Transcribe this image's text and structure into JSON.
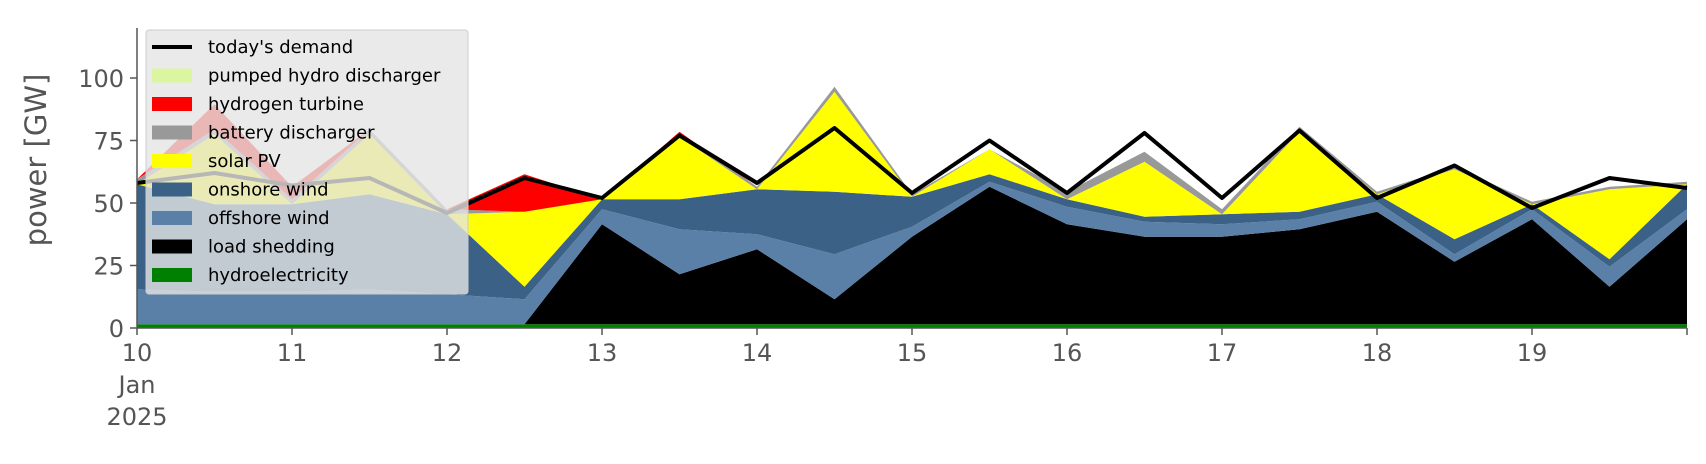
{
  "chart_data": {
    "type": "area",
    "stacked": true,
    "ylabel": "power [GW]",
    "ylim": [
      0,
      120
    ],
    "yticks": [
      "0",
      "25",
      "50",
      "75",
      "100"
    ],
    "xlim": [
      "2025-01-10",
      "2025-01-20"
    ],
    "x_tick_labels": [
      {
        "day": "10",
        "sub1": "Jan",
        "sub2": "2025"
      },
      {
        "day": "11"
      },
      {
        "day": "12"
      },
      {
        "day": "13"
      },
      {
        "day": "14"
      },
      {
        "day": "15"
      },
      {
        "day": "16"
      },
      {
        "day": "17"
      },
      {
        "day": "18"
      },
      {
        "day": "19"
      },
      {
        "day": ""
      }
    ],
    "grid": false,
    "legend_position": "top-left",
    "x_days": [
      10,
      10.5,
      11,
      11.5,
      12,
      12.5,
      13,
      13.5,
      14,
      14.5,
      15,
      15.5,
      16,
      16.5,
      17,
      17.5,
      18,
      18.5,
      19,
      19.5,
      20
    ],
    "series": [
      {
        "name": "hydroelectricity",
        "color": "#008000",
        "values": [
          1.5,
          1.5,
          1.5,
          1.5,
          1.5,
          1.5,
          1.5,
          1.5,
          1.5,
          1.5,
          1.5,
          1.5,
          1.5,
          1.5,
          1.5,
          1.5,
          1.5,
          1.5,
          1.5,
          1.5,
          1.5
        ]
      },
      {
        "name": "load shedding",
        "color": "#000000",
        "values": [
          0,
          0,
          0,
          0,
          0,
          0,
          40,
          20,
          30,
          10,
          35,
          55,
          40,
          35,
          35,
          38,
          45,
          25,
          42,
          15,
          42
        ]
      },
      {
        "name": "offshore wind",
        "color": "#5b80a8",
        "values": [
          14,
          13,
          13,
          14,
          12,
          10,
          6,
          18,
          6,
          18,
          4,
          2,
          7,
          6,
          5,
          4,
          4,
          3,
          4,
          8,
          4
        ]
      },
      {
        "name": "onshore wind",
        "color": "#3b6186",
        "values": [
          42,
          35,
          35,
          38,
          32,
          5,
          4,
          12,
          18,
          25,
          12,
          3,
          3,
          2,
          4,
          3,
          3,
          6,
          2,
          3,
          10
        ]
      },
      {
        "name": "solar PV",
        "color": "#ffff00",
        "values": [
          0,
          28,
          0,
          24,
          0,
          30,
          0,
          25,
          0,
          40,
          0,
          10,
          0,
          22,
          0,
          32,
          0,
          28,
          0,
          28,
          0
        ]
      },
      {
        "name": "battery discharger",
        "color": "#999999",
        "values": [
          2,
          2,
          2,
          2,
          2,
          0,
          0,
          1,
          1,
          2,
          1,
          0,
          3,
          4,
          2,
          2,
          1,
          1,
          1,
          1,
          1
        ]
      },
      {
        "name": "hydrogen turbine",
        "color": "#ff0000",
        "values": [
          0,
          10,
          5,
          0,
          0,
          15,
          0,
          1,
          0,
          0,
          0,
          0,
          0,
          0,
          0,
          0,
          0,
          0,
          0,
          0,
          0
        ]
      },
      {
        "name": "pumped hydro discharger",
        "color": "#dcf5a0",
        "values": [
          0,
          0,
          0,
          0,
          0,
          0,
          0,
          0,
          0,
          0,
          0,
          0,
          0,
          0,
          0,
          0,
          0,
          0,
          0,
          0,
          0
        ]
      }
    ],
    "demand": {
      "name": "today's demand",
      "color": "#000000",
      "values": [
        58,
        62,
        57,
        60,
        46,
        60,
        52,
        77,
        58,
        80,
        54,
        75,
        54,
        78,
        52,
        79,
        52,
        65,
        48,
        60,
        56
      ]
    },
    "legend": [
      {
        "label": "today's demand",
        "color": "#000000",
        "kind": "line"
      },
      {
        "label": "pumped hydro discharger",
        "color": "#dcf5a0",
        "kind": "patch"
      },
      {
        "label": "hydrogen turbine",
        "color": "#ff0000",
        "kind": "patch"
      },
      {
        "label": "battery discharger",
        "color": "#999999",
        "kind": "patch"
      },
      {
        "label": "solar PV",
        "color": "#ffff00",
        "kind": "patch"
      },
      {
        "label": "onshore wind",
        "color": "#3b6186",
        "kind": "patch"
      },
      {
        "label": "offshore wind",
        "color": "#5b80a8",
        "kind": "patch"
      },
      {
        "label": "load shedding",
        "color": "#000000",
        "kind": "patch"
      },
      {
        "label": "hydroelectricity",
        "color": "#008000",
        "kind": "patch"
      }
    ]
  }
}
